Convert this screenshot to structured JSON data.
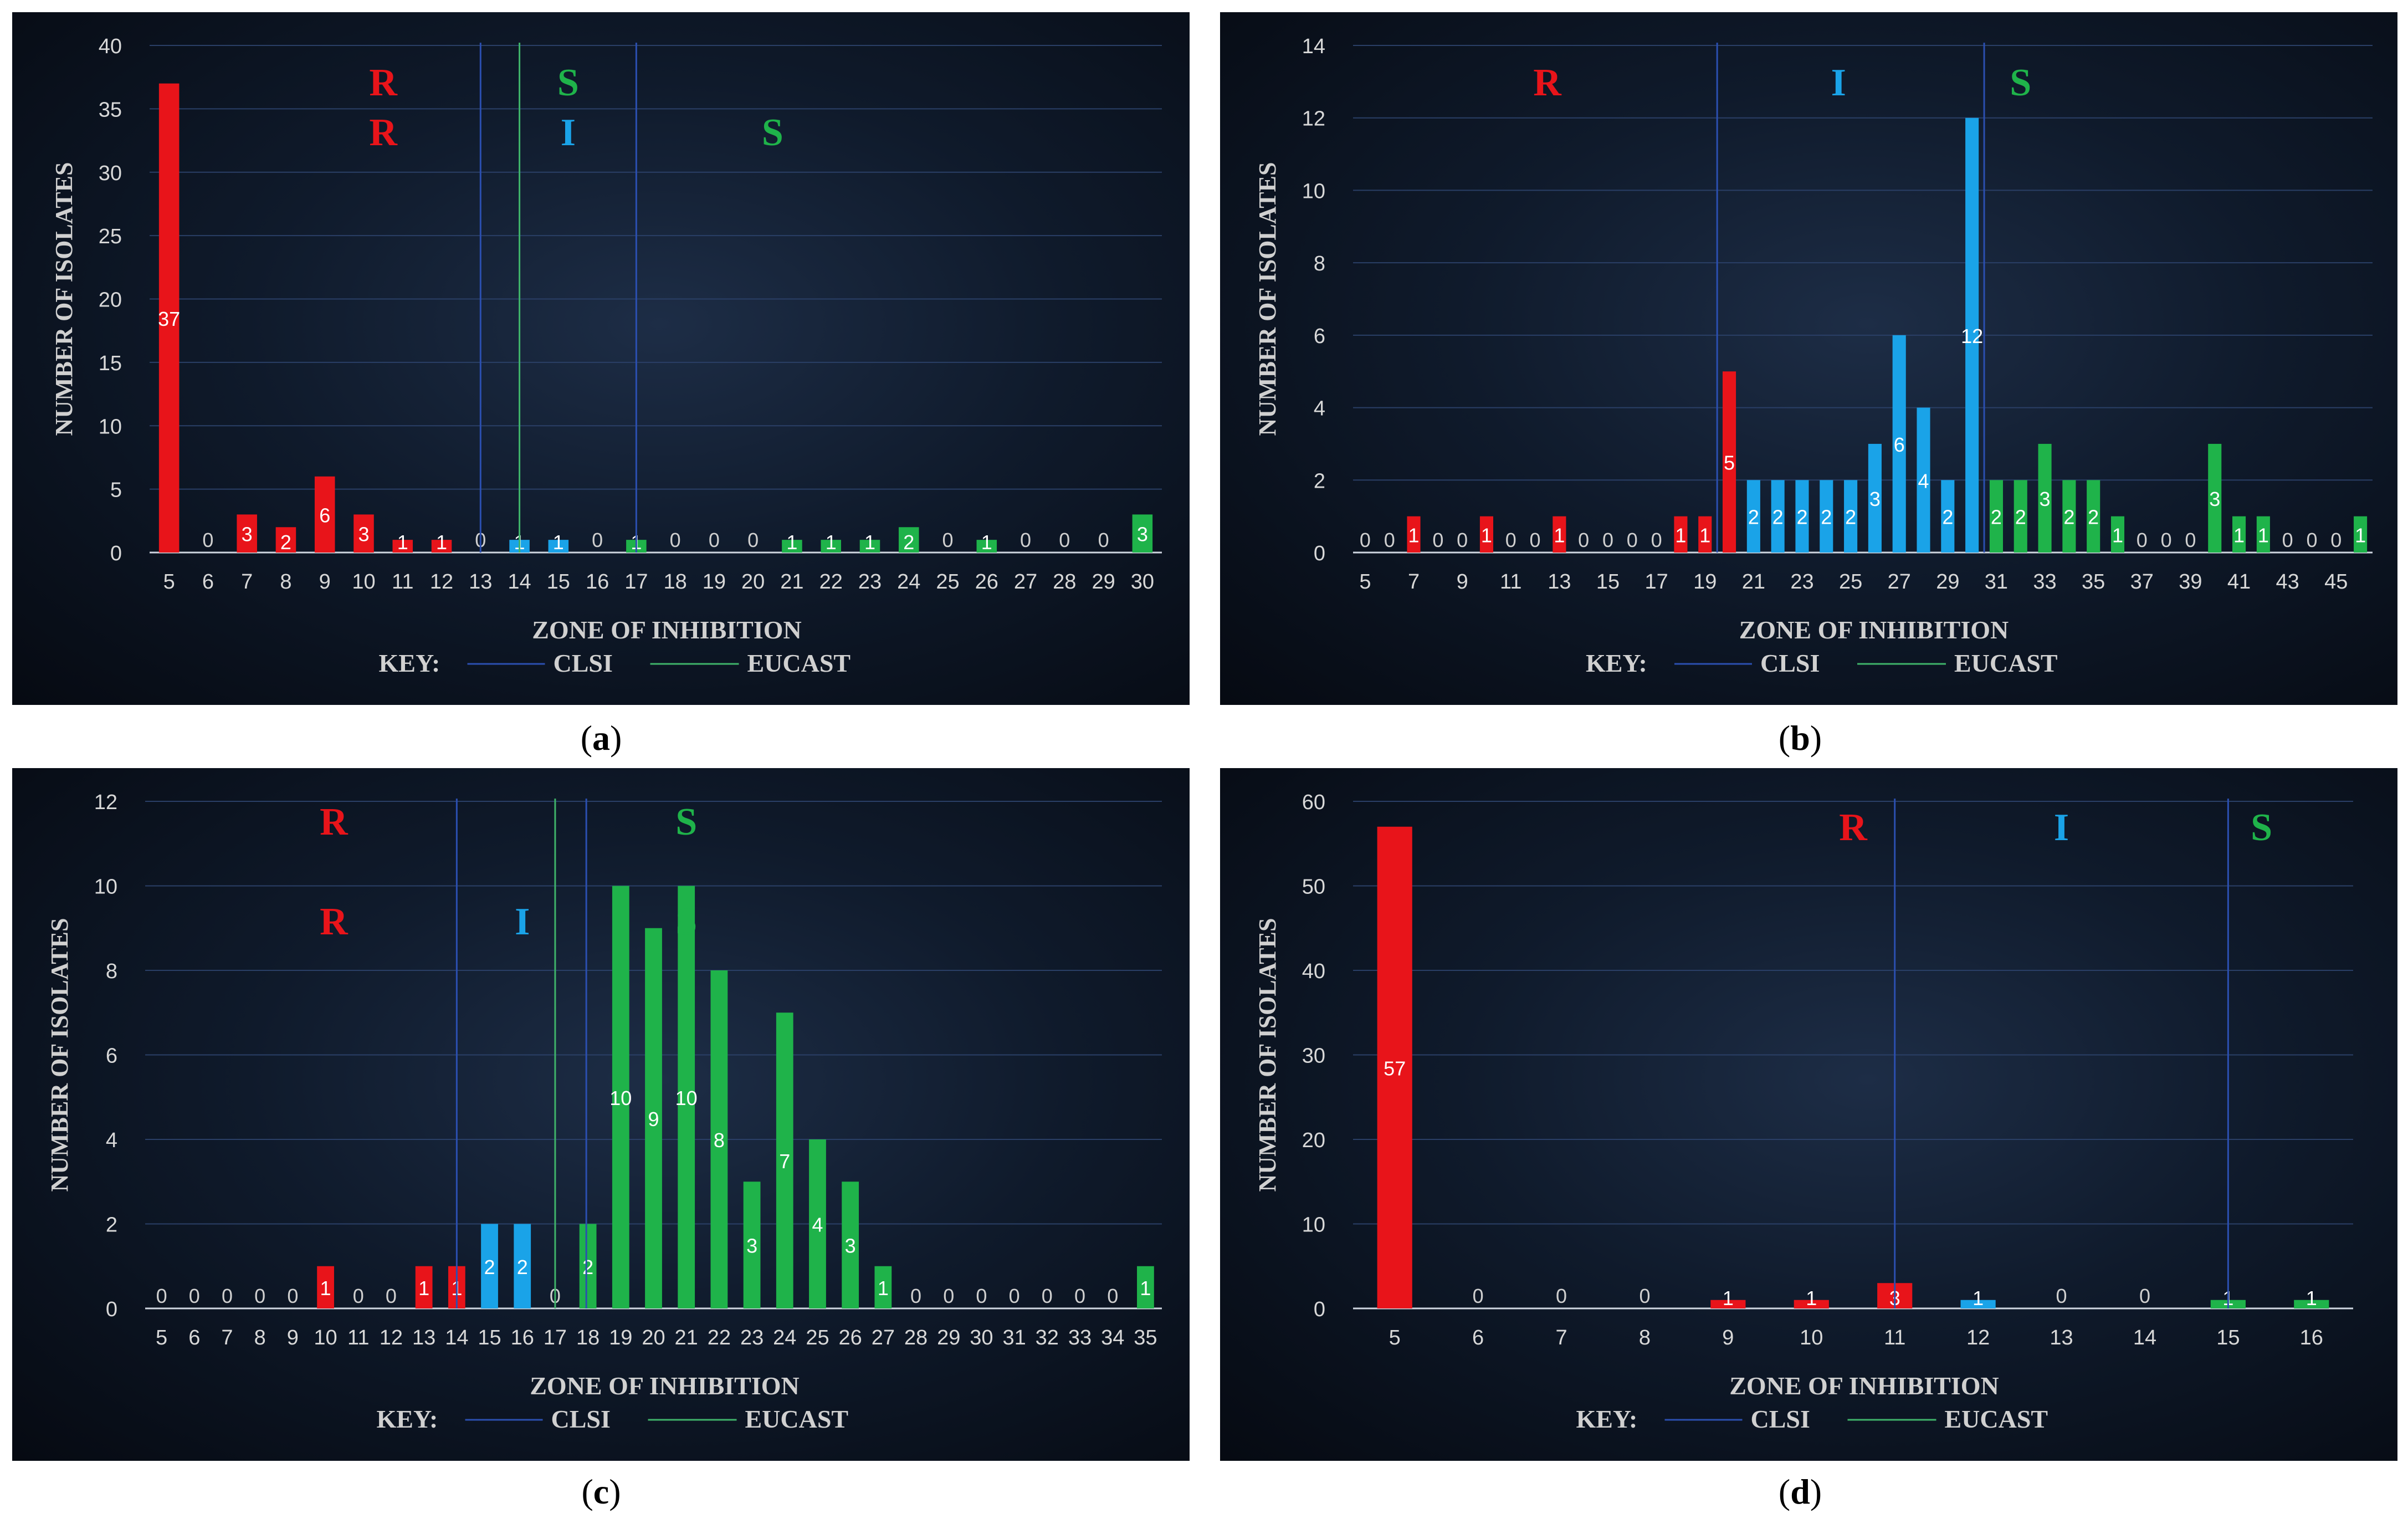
{
  "chart_data": [
    {
      "type": "bar",
      "panel": "a",
      "ylabel": "NUMBER OF ISOLATES",
      "xlabel": "ZONE OF INHIBITION",
      "key": {
        "label": "KEY:",
        "clsi": "CLSI",
        "eucast": "EUCAST"
      },
      "ylim": [
        0,
        40
      ],
      "yticks": [
        0,
        5,
        10,
        15,
        20,
        25,
        30,
        35,
        40
      ],
      "categories": [
        "5",
        "6",
        "7",
        "8",
        "9",
        "10",
        "11",
        "12",
        "13",
        "14",
        "15",
        "16",
        "17",
        "18",
        "19",
        "20",
        "21",
        "22",
        "23",
        "24",
        "25",
        "26",
        "27",
        "28",
        "29",
        "30"
      ],
      "values": [
        37,
        0,
        3,
        2,
        6,
        3,
        1,
        1,
        0,
        1,
        1,
        0,
        1,
        0,
        0,
        0,
        1,
        1,
        1,
        2,
        0,
        1,
        0,
        0,
        0,
        3
      ],
      "bar_category": [
        "R",
        "R",
        "R",
        "R",
        "R",
        "R",
        "R",
        "R",
        "R",
        "I",
        "I",
        "I",
        "S",
        "S",
        "S",
        "S",
        "S",
        "S",
        "S",
        "S",
        "S",
        "S",
        "S",
        "S",
        "S",
        "S"
      ],
      "clsi_lines": [
        13,
        17
      ],
      "eucast_lines": [
        14
      ],
      "zone_labels": [
        {
          "text": "R",
          "color": "#e8141a",
          "x": 10.5,
          "row": 0
        },
        {
          "text": "S",
          "color": "#1fb34a",
          "x": 15.25,
          "row": 0
        },
        {
          "text": "R",
          "color": "#e8141a",
          "x": 10.5,
          "row": 1
        },
        {
          "text": "I",
          "color": "#1aa3e8",
          "x": 15.25,
          "row": 1
        },
        {
          "text": "S",
          "color": "#1fb34a",
          "x": 20.5,
          "row": 1
        }
      ],
      "grid": true
    },
    {
      "type": "bar",
      "panel": "b",
      "ylabel": "NUMBER OF ISOLATES",
      "xlabel": "ZONE OF INHIBITION",
      "key": {
        "label": "KEY:",
        "clsi": "CLSI",
        "eucast": "EUCAST"
      },
      "ylim": [
        0,
        14
      ],
      "yticks": [
        0,
        2,
        4,
        6,
        8,
        10,
        12,
        14
      ],
      "categories": [
        "5",
        "6",
        "7",
        "8",
        "9",
        "10",
        "11",
        "12",
        "13",
        "14",
        "15",
        "16",
        "17",
        "18",
        "19",
        "20",
        "21",
        "22",
        "23",
        "24",
        "25",
        "26",
        "27",
        "28",
        "29",
        "30",
        "31",
        "32",
        "33",
        "34",
        "35",
        "36",
        "37",
        "38",
        "39",
        "40",
        "41",
        "42",
        "43",
        "44",
        "45",
        "46"
      ],
      "xtick_labels": [
        "5",
        "",
        "7",
        "",
        "9",
        "",
        "11",
        "",
        "13",
        "",
        "15",
        "",
        "17",
        "",
        "19",
        "",
        "21",
        "",
        "23",
        "",
        "25",
        "",
        "27",
        "",
        "29",
        "",
        "31",
        "",
        "33",
        "",
        "35",
        "",
        "37",
        "",
        "39",
        "",
        "41",
        "",
        "43",
        "",
        "45",
        ""
      ],
      "values": [
        0,
        0,
        1,
        0,
        0,
        1,
        0,
        0,
        1,
        0,
        0,
        0,
        0,
        1,
        1,
        5,
        2,
        2,
        2,
        2,
        2,
        3,
        6,
        4,
        2,
        12,
        2,
        2,
        3,
        2,
        2,
        1,
        0,
        0,
        0,
        3,
        1,
        1,
        0,
        0,
        0,
        1
      ],
      "bar_category": [
        "R",
        "R",
        "R",
        "R",
        "R",
        "R",
        "R",
        "R",
        "R",
        "R",
        "R",
        "R",
        "R",
        "R",
        "R",
        "R",
        "I",
        "I",
        "I",
        "I",
        "I",
        "I",
        "I",
        "I",
        "I",
        "I",
        "S",
        "S",
        "S",
        "S",
        "S",
        "S",
        "S",
        "S",
        "S",
        "S",
        "S",
        "S",
        "S",
        "S",
        "S",
        "S"
      ],
      "clsi_lines": [
        19.5,
        30.5
      ],
      "eucast_lines": [],
      "zone_labels": [
        {
          "text": "R",
          "color": "#e8141a",
          "x": 12.5,
          "row": 0
        },
        {
          "text": "I",
          "color": "#1aa3e8",
          "x": 24.5,
          "row": 0
        },
        {
          "text": "S",
          "color": "#1fb34a",
          "x": 32,
          "row": 0
        }
      ],
      "grid": true
    },
    {
      "type": "bar",
      "panel": "c",
      "ylabel": "NUMBER OF ISOLATES",
      "xlabel": "ZONE OF INHIBITION",
      "key": {
        "label": "KEY:",
        "clsi": "CLSI",
        "eucast": "EUCAST"
      },
      "ylim": [
        0,
        12
      ],
      "yticks": [
        0,
        2,
        4,
        6,
        8,
        10,
        12
      ],
      "categories": [
        "5",
        "6",
        "7",
        "8",
        "9",
        "10",
        "11",
        "12",
        "13",
        "14",
        "15",
        "16",
        "17",
        "18",
        "19",
        "20",
        "21",
        "22",
        "23",
        "24",
        "25",
        "26",
        "27",
        "28",
        "29",
        "30",
        "31",
        "32",
        "33",
        "34",
        "35"
      ],
      "values": [
        0,
        0,
        0,
        0,
        0,
        1,
        0,
        0,
        1,
        1,
        2,
        2,
        0,
        2,
        10,
        9,
        10,
        8,
        3,
        7,
        4,
        3,
        1,
        0,
        0,
        0,
        0,
        0,
        0,
        0,
        1
      ],
      "bar_category": [
        "R",
        "R",
        "R",
        "R",
        "R",
        "R",
        "R",
        "R",
        "R",
        "R",
        "I",
        "I",
        "S",
        "S",
        "S",
        "S",
        "S",
        "S",
        "S",
        "S",
        "S",
        "S",
        "S",
        "S",
        "S",
        "S",
        "S",
        "S",
        "S",
        "S",
        "S"
      ],
      "clsi_lines": [
        14,
        17.95
      ],
      "eucast_lines": [
        17
      ],
      "zone_labels": [
        {
          "text": "R",
          "color": "#e8141a",
          "x": 10.25,
          "row": 0
        },
        {
          "text": "S",
          "color": "#1fb34a",
          "x": 21,
          "row": 0
        },
        {
          "text": "R",
          "color": "#e8141a",
          "x": 10.25,
          "row": 1
        },
        {
          "text": "I",
          "color": "#1aa3e8",
          "x": 16,
          "row": 1
        },
        {
          "text": "S",
          "color": "#1fb34a",
          "x": 21,
          "row": 1
        }
      ],
      "grid": true
    },
    {
      "type": "bar",
      "panel": "d",
      "ylabel": "NUMBER OF ISOLATES",
      "xlabel": "ZONE OF INHIBITION",
      "key": {
        "label": "KEY:",
        "clsi": "CLSI",
        "eucast": "EUCAST"
      },
      "ylim": [
        0,
        60
      ],
      "yticks": [
        0,
        10,
        20,
        30,
        40,
        50,
        60
      ],
      "categories": [
        "5",
        "6",
        "7",
        "8",
        "9",
        "10",
        "11",
        "12",
        "13",
        "14",
        "15",
        "16"
      ],
      "values": [
        57,
        0,
        0,
        0,
        1,
        1,
        3,
        1,
        0,
        0,
        1,
        1
      ],
      "bar_category": [
        "R",
        "R",
        "R",
        "R",
        "R",
        "R",
        "R",
        "I",
        "I",
        "I",
        "S",
        "S"
      ],
      "clsi_lines": [
        11,
        15
      ],
      "eucast_lines": [],
      "zone_labels": [
        {
          "text": "R",
          "color": "#e8141a",
          "x": 10.5,
          "row": 0
        },
        {
          "text": "I",
          "color": "#1aa3e8",
          "x": 13,
          "row": 0
        },
        {
          "text": "S",
          "color": "#1fb34a",
          "x": 15.4,
          "row": 0
        }
      ],
      "grid": true
    }
  ],
  "colors": {
    "R": "#e8141a",
    "I": "#1aa3e8",
    "S": "#1fb34a",
    "clsi": "#2b4fb0",
    "eucast": "#3fb36a"
  },
  "captions": [
    "a",
    "b",
    "c",
    "d"
  ]
}
